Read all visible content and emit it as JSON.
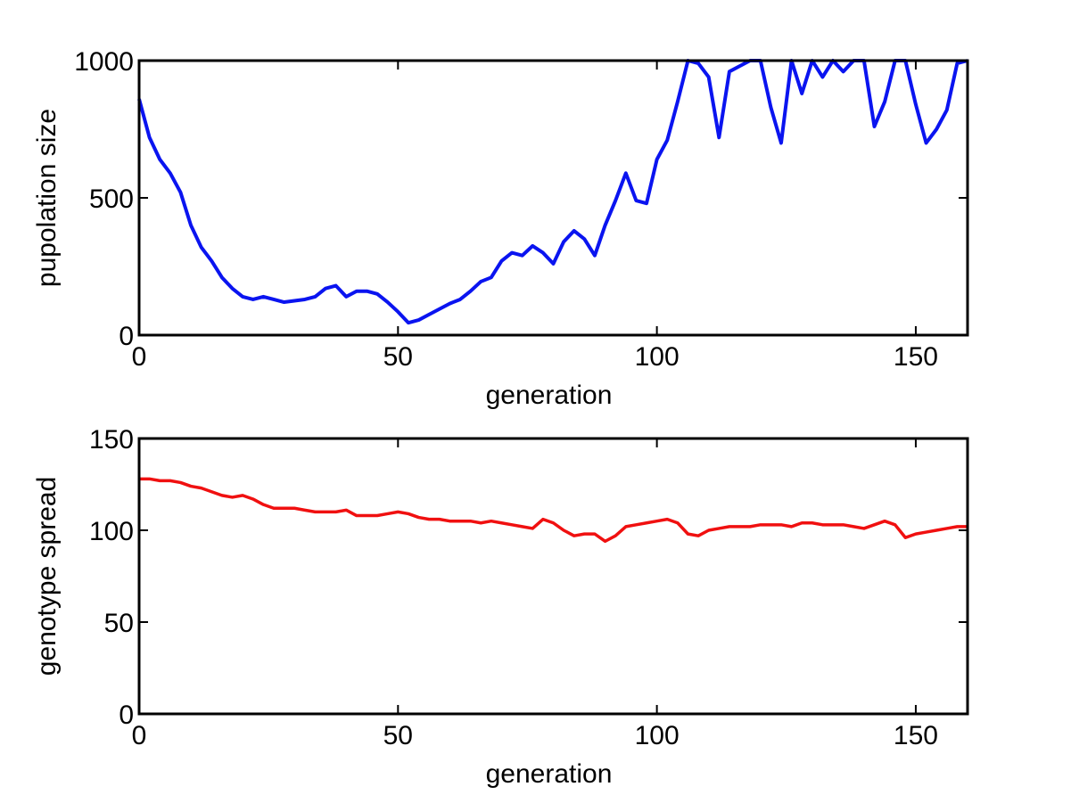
{
  "chart_data": [
    {
      "type": "line",
      "xlabel": "generation",
      "ylabel": "pupolation size",
      "color": "#0a14f0",
      "x": [
        0,
        2,
        4,
        6,
        8,
        10,
        12,
        14,
        16,
        18,
        20,
        22,
        24,
        26,
        28,
        30,
        32,
        34,
        36,
        38,
        40,
        42,
        44,
        46,
        48,
        50,
        52,
        54,
        56,
        58,
        60,
        62,
        64,
        66,
        68,
        70,
        72,
        74,
        76,
        78,
        80,
        82,
        84,
        86,
        88,
        90,
        92,
        94,
        96,
        98,
        100,
        102,
        104,
        106,
        108,
        110,
        112,
        114,
        116,
        118,
        120,
        122,
        124,
        126,
        128,
        130,
        132,
        134,
        136,
        138,
        140,
        142,
        144,
        146,
        148,
        150,
        152,
        154,
        156,
        158,
        160
      ],
      "values": [
        860,
        720,
        640,
        590,
        520,
        400,
        320,
        270,
        210,
        170,
        140,
        130,
        140,
        130,
        120,
        125,
        130,
        140,
        170,
        180,
        140,
        160,
        160,
        150,
        120,
        85,
        45,
        55,
        75,
        95,
        115,
        130,
        160,
        195,
        210,
        270,
        300,
        290,
        325,
        300,
        260,
        340,
        380,
        350,
        290,
        400,
        490,
        590,
        490,
        480,
        640,
        710,
        850,
        1000,
        990,
        940,
        720,
        960,
        980,
        1000,
        1000,
        830,
        700,
        1000,
        880,
        1000,
        940,
        1000,
        960,
        1000,
        1000,
        760,
        850,
        1000,
        1000,
        840,
        700,
        750,
        820,
        990,
        1000
      ],
      "xlim": [
        0,
        160
      ],
      "xticks": [
        0,
        50,
        100,
        150
      ],
      "ylim": [
        0,
        1000
      ],
      "yticks": [
        0,
        500,
        1000
      ]
    },
    {
      "type": "line",
      "xlabel": "generation",
      "ylabel": "genotype spread",
      "color": "#f01010",
      "x": [
        0,
        2,
        4,
        6,
        8,
        10,
        12,
        14,
        16,
        18,
        20,
        22,
        24,
        26,
        28,
        30,
        32,
        34,
        36,
        38,
        40,
        42,
        44,
        46,
        48,
        50,
        52,
        54,
        56,
        58,
        60,
        62,
        64,
        66,
        68,
        70,
        72,
        74,
        76,
        78,
        80,
        82,
        84,
        86,
        88,
        90,
        92,
        94,
        96,
        98,
        100,
        102,
        104,
        106,
        108,
        110,
        112,
        114,
        116,
        118,
        120,
        122,
        124,
        126,
        128,
        130,
        132,
        134,
        136,
        138,
        140,
        142,
        144,
        146,
        148,
        150,
        152,
        154,
        156,
        158,
        160
      ],
      "values": [
        128,
        128,
        127,
        127,
        126,
        124,
        123,
        121,
        119,
        118,
        119,
        117,
        114,
        112,
        112,
        112,
        111,
        110,
        110,
        110,
        111,
        108,
        108,
        108,
        109,
        110,
        109,
        107,
        106,
        106,
        105,
        105,
        105,
        104,
        105,
        104,
        103,
        102,
        101,
        106,
        104,
        100,
        97,
        98,
        98,
        94,
        97,
        102,
        103,
        104,
        105,
        106,
        104,
        98,
        97,
        100,
        101,
        102,
        102,
        102,
        103,
        103,
        103,
        102,
        104,
        104,
        103,
        103,
        103,
        102,
        101,
        103,
        105,
        103,
        96,
        98,
        99,
        100,
        101,
        102,
        102
      ],
      "xlim": [
        0,
        160
      ],
      "xticks": [
        0,
        50,
        100,
        150
      ],
      "ylim": [
        0,
        150
      ],
      "yticks": [
        0,
        50,
        100,
        150
      ]
    }
  ]
}
